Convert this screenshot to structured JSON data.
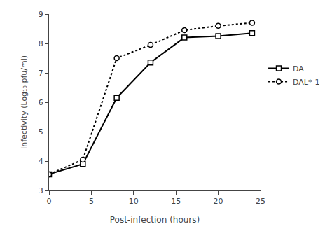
{
  "chart_data": {
    "type": "line",
    "x": [
      0,
      4,
      8,
      12,
      16,
      20,
      24
    ],
    "series": [
      {
        "name": "DA",
        "color": "black",
        "marker": "square",
        "line_style": "solid",
        "values": [
          3.55,
          3.9,
          6.15,
          7.35,
          8.2,
          8.25,
          8.35
        ]
      },
      {
        "name": "DAL*-1",
        "color": "black",
        "marker": "circle",
        "line_style": "dotted",
        "values": [
          3.55,
          4.05,
          7.5,
          7.95,
          8.45,
          8.6,
          8.7
        ]
      }
    ],
    "xlabel": "Post-infection (hours)",
    "ylabel": "Infectivity (Log₁₀ pfu/ml)",
    "xlim": [
      0,
      25
    ],
    "ylim": [
      3,
      9
    ],
    "xticks": [
      0,
      5,
      10,
      15,
      20,
      25
    ],
    "yticks": [
      3,
      4,
      5,
      6,
      7,
      8,
      9
    ],
    "grid": false,
    "legend": "right"
  }
}
